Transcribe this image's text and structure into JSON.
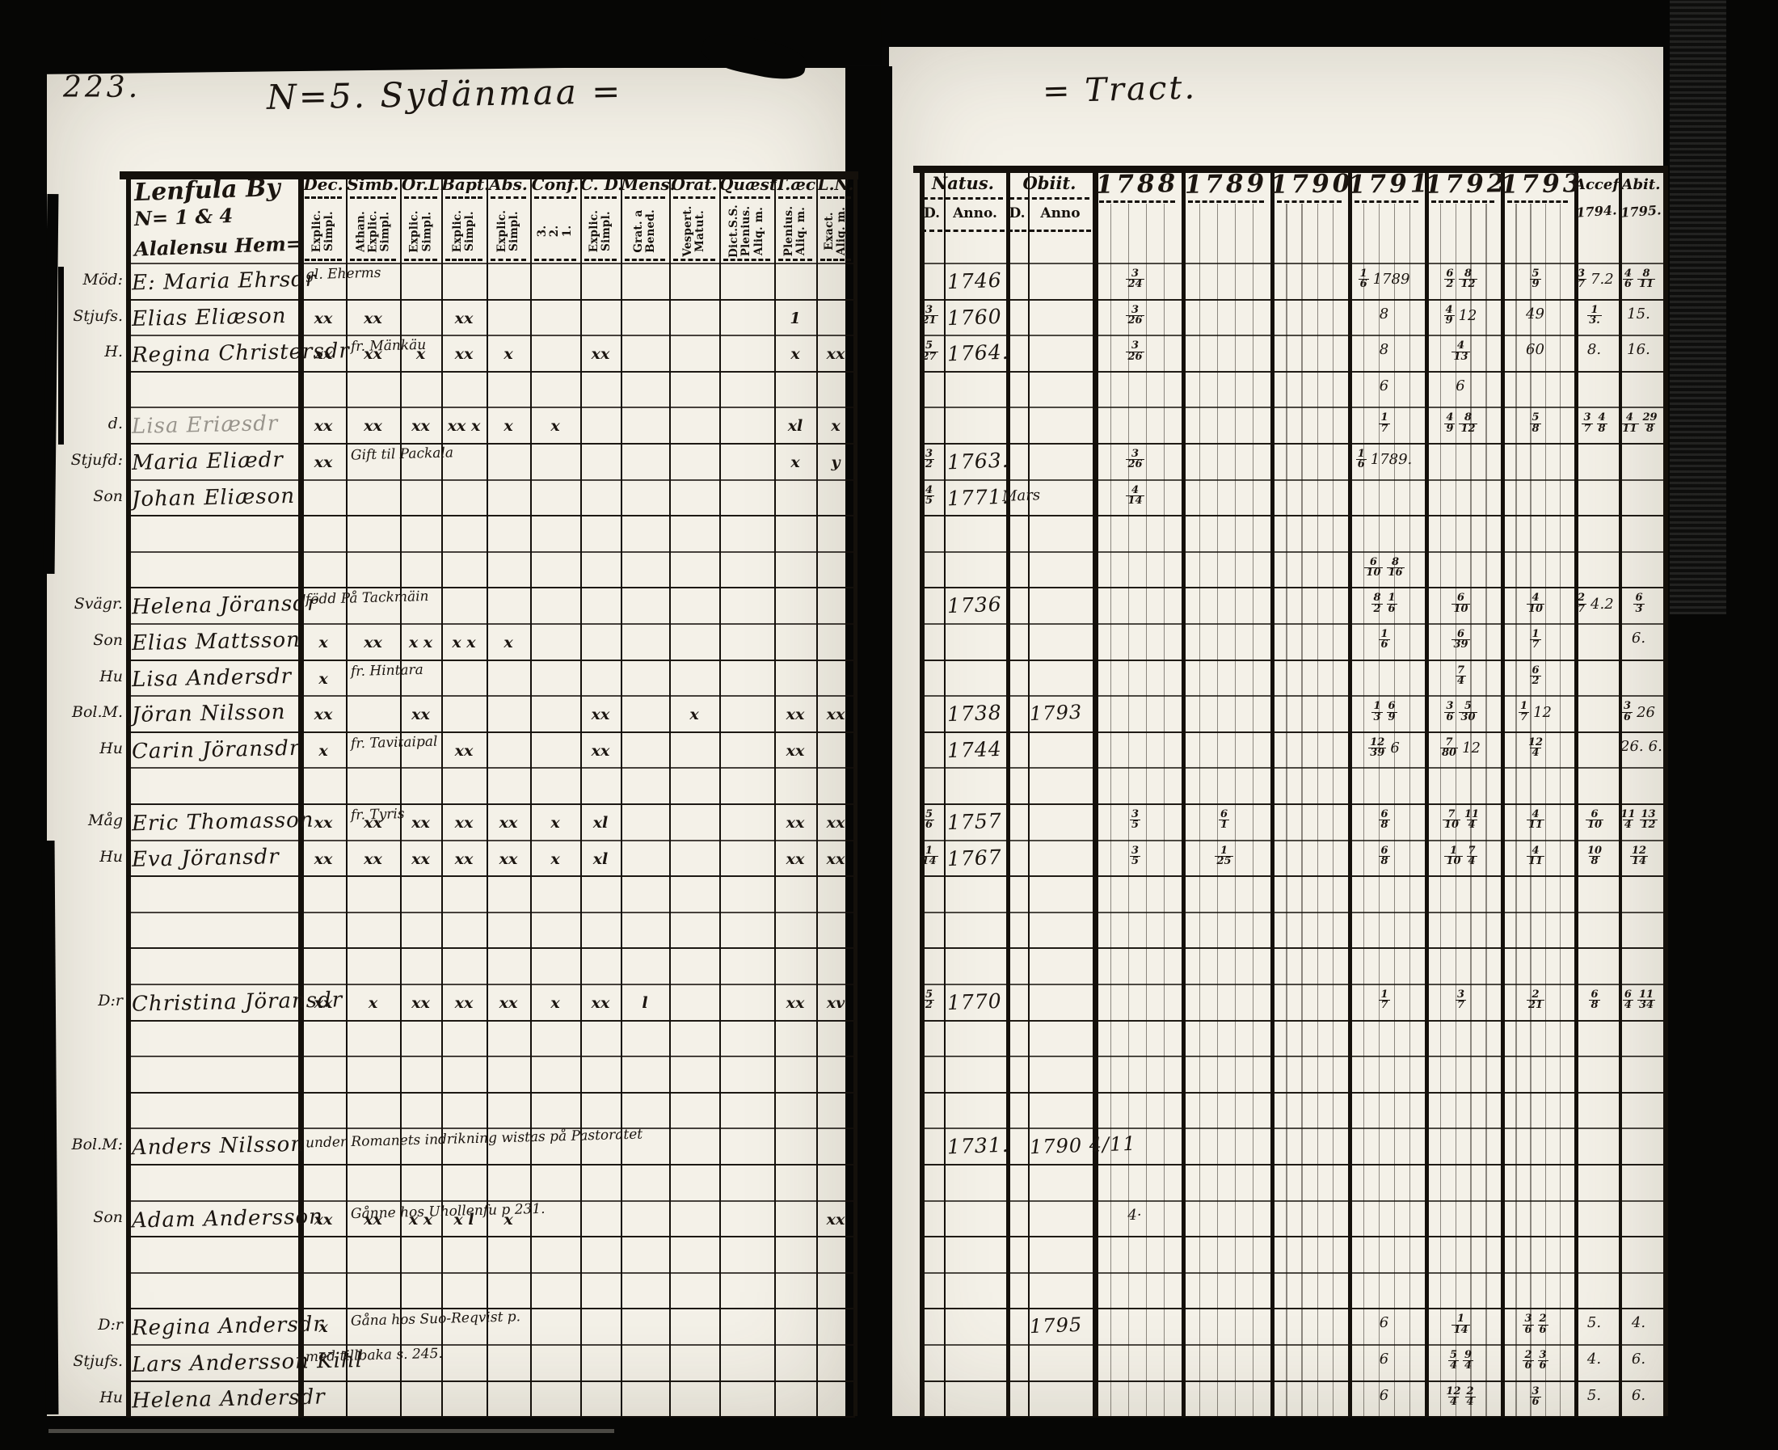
{
  "scan": {
    "page_number": "223.",
    "left_heading": "N=5. Sydänmaa =",
    "right_heading": "= Tract.",
    "paper_color": "#f4f1e8",
    "ink_color": "#1b1510"
  },
  "left_table": {
    "village_lines": [
      "Lenfula By",
      "N= 1 & 4",
      "Alalensu Hem="
    ],
    "columns": [
      {
        "label": "Dec.",
        "sub": [
          "Explic.",
          "Simpl."
        ]
      },
      {
        "label": "Simb.",
        "sub": [
          "Athan.",
          "Explic.",
          "Simpl."
        ]
      },
      {
        "label": "Or.L",
        "sub": [
          "Explic.",
          "Simpl."
        ]
      },
      {
        "label": "Bapt.",
        "sub": [
          "Explic.",
          "Simpl."
        ]
      },
      {
        "label": "Abs.",
        "sub": [
          "Explic.",
          "Simpl."
        ]
      },
      {
        "label": "Conf.",
        "sub": [
          "3.",
          "2.",
          "1."
        ]
      },
      {
        "label": "C. D.",
        "sub": [
          "Explic.",
          "Simpl."
        ]
      },
      {
        "label": "Mens.",
        "sub": [
          "Grat. a",
          "Bened."
        ]
      },
      {
        "label": "Orat.",
        "sub": [
          "Vespert.",
          "Matut."
        ]
      },
      {
        "label": "Quæst.",
        "sub": [
          "Dict.S.S.",
          "Plenius.",
          "Aliq. m."
        ]
      },
      {
        "label": "T.æc",
        "sub": [
          "Plenius.",
          "Aliq. m."
        ]
      },
      {
        "label": "L.N.",
        "sub": [
          "Exact.",
          "Aliq. m."
        ]
      }
    ],
    "rows": [
      {
        "m": "Möd:",
        "n": "E: Maria Ehrsdr",
        "note": "gl. Eherms",
        "nc": 0
      },
      {
        "m": "Stjufs.",
        "n": "Elias Eliæson",
        "k": {
          "0": "xx",
          "1": "xx",
          "3": "xx",
          "10": "1"
        }
      },
      {
        "m": "H.",
        "n": "Regina Christersdr",
        "note": "fr. Mänkäu",
        "nc": 1,
        "k": {
          "0": "xx",
          "1": "xx",
          "2": "x",
          "3": "xx",
          "4": "x",
          "6": "xx",
          "10": "x",
          "11": "xx"
        }
      },
      {},
      {
        "m": "d.",
        "n": "Lisa Eriæsdr",
        "faded": true,
        "k": {
          "0": "xx",
          "1": "xx",
          "2": "xx",
          "3": "xx x",
          "4": "x",
          "5": "x",
          "10": "xl",
          "11": "x"
        }
      },
      {
        "m": "Stjufd:",
        "n": "Maria Eliædr",
        "note": "Gift til Packala",
        "nc": 1,
        "k": {
          "0": "xx",
          "10": "x",
          "11": "y"
        }
      },
      {
        "m": "Son",
        "n": "Johan Eliæson"
      },
      {},
      {},
      {
        "m": "Svägr.",
        "n": "Helena Jöransdr",
        "note": "född På Tackmäin",
        "nc": 0
      },
      {
        "m": "Son",
        "n": "Elias Mattsson",
        "k": {
          "0": "x",
          "1": "xx",
          "2": "x x",
          "3": "x x",
          "4": "x"
        }
      },
      {
        "m": "Hu",
        "n": "Lisa Andersdr",
        "note": "fr. Hintara",
        "nc": 1,
        "k": {
          "0": "x"
        }
      },
      {
        "m": "Bol.M.",
        "n": "Jöran Nilsson",
        "k": {
          "0": "xx",
          "2": "xx",
          "6": "xx",
          "8": "x",
          "10": "xx",
          "11": "xx"
        }
      },
      {
        "m": "Hu",
        "n": "Carin Jöransdr",
        "note": "fr. Tavitaipal",
        "nc": 1,
        "k": {
          "0": "x",
          "3": "xx",
          "6": "xx",
          "10": "xx"
        }
      },
      {},
      {
        "m": "Måg",
        "n": "Eric Thomasson",
        "note": "fr. Tyris",
        "nc": 1,
        "k": {
          "0": "xx",
          "1": "xx",
          "2": "xx",
          "3": "xx",
          "4": "xx",
          "5": "x",
          "6": "xl",
          "10": "xx",
          "11": "xx"
        }
      },
      {
        "m": "Hu",
        "n": "Eva Jöransdr",
        "k": {
          "0": "xx",
          "1": "xx",
          "2": "xx",
          "3": "xx",
          "4": "xx",
          "5": "x",
          "6": "xl",
          "10": "xx",
          "11": "xx"
        }
      },
      {},
      {},
      {},
      {
        "m": "D:r",
        "n": "Christina Jöransdr",
        "k": {
          "0": "xx",
          "1": "x",
          "2": "xx",
          "3": "xx",
          "4": "xx",
          "5": "x",
          "6": "xx",
          "7": "l",
          "10": "xx",
          "11": "xv"
        }
      },
      {},
      {},
      {},
      {
        "m": "Bol.M:",
        "n": "Anders Nilsson",
        "note": "under Romanets indrikning wistas på Pastoratet",
        "nc": 0
      },
      {},
      {
        "m": "Son",
        "n": "Adam Andersson",
        "note": "Gånne hos Uhollenfu p 231.",
        "nc": 1,
        "k": {
          "0": "xx",
          "1": "xx",
          "2": "x x",
          "3": "x l",
          "4": "x",
          "11": "xx"
        }
      },
      {},
      {},
      {
        "m": "D:r",
        "n": "Regina Andersdr",
        "note": "Gåna hos Suo-Reqvist p.",
        "nc": 1,
        "k": {
          "0": "x"
        }
      },
      {
        "m": "Stjufs.",
        "n": "Lars Andersson Kihl",
        "note": "med tillbaka s. 245.",
        "nc": 0
      },
      {
        "m": "Hu",
        "n": "Helena Andersdr"
      }
    ]
  },
  "right_table": {
    "natus": {
      "label": "Natus.",
      "d": "D.",
      "anno": "Anno."
    },
    "obiit": {
      "label": "Obiit.",
      "d": "D.",
      "anno": "Anno"
    },
    "years": [
      "1788",
      "1789",
      "1790",
      "1791",
      "1792",
      "1793"
    ],
    "accessit": {
      "label": "Accef.",
      "sub": "1794."
    },
    "abiit": {
      "label": "Abit.",
      "sub": "1795."
    },
    "rows": [
      {
        "na": "1746",
        "y": {
          "0": "3/24",
          "3": "1/6 1789",
          "4": "6/2 8/12",
          "5": "5/9",
          "6": "3/7 7.2",
          "7": "4/6 8/11"
        }
      },
      {
        "nd": "3/21",
        "na": "1760",
        "y": {
          "0": "3/26",
          "3": "8",
          "4": "4/9 12",
          "5": "49",
          "6": "1/3.",
          "7": "15."
        }
      },
      {
        "nd": "5/27",
        "na": "1764.",
        "y": {
          "0": "3/26",
          "3": "8",
          "4": "4/13",
          "5": "60",
          "6": "8.",
          "7": "16."
        }
      },
      {
        "y": {
          "3": "6",
          "4": "6"
        }
      },
      {
        "y": {
          "3": "1/7",
          "4": "4/9 8/12",
          "5": "5/8",
          "6": "3/7 4/8",
          "7": "4/11 29/8"
        }
      },
      {
        "nd": "3/2",
        "na": "1763.",
        "y": {
          "0": "3/26",
          "3": "1/6 1789."
        }
      },
      {
        "nd": "4/5",
        "na": "1771.",
        "od": "Mars",
        "y": {
          "0": "4/14"
        }
      },
      {},
      {
        "y": {
          "3": "6/10 8/16"
        }
      },
      {
        "na": "1736",
        "y": {
          "3": "8/2 1/6",
          "4": "6/10",
          "5": "4/10",
          "6": "2/7 4.2",
          "7": "6/3"
        }
      },
      {
        "y": {
          "3": "1/6",
          "4": "6/39",
          "5": "1/7",
          "7": "6."
        }
      },
      {
        "y": {
          "4": "7/4",
          "5": "6/2"
        }
      },
      {
        "na": "1738",
        "oa": "1793",
        "y": {
          "3": "1/3 6/9",
          "4": "3/6 5/30",
          "5": "1/7 12",
          "7": "3/6 26"
        }
      },
      {
        "na": "1744",
        "y": {
          "3": "12/39 6",
          "4": "7/80 12",
          "5": "12/4",
          "7": "26. 6."
        }
      },
      {},
      {
        "nd": "5/6",
        "na": "1757",
        "y": {
          "0": "3/5",
          "1": "6/1",
          "3": "6/8",
          "4": "7/10 11/4",
          "5": "4/11",
          "6": "6/10",
          "7": "11/4 13/12"
        }
      },
      {
        "nd": "1/14",
        "na": "1767",
        "y": {
          "0": "3/5",
          "1": "1/25",
          "3": "6/8",
          "4": "1/10 7/4",
          "5": "4/11",
          "6": "10/8",
          "7": "12/14"
        }
      },
      {},
      {},
      {},
      {
        "nd": "5/2",
        "na": "1770",
        "y": {
          "3": "1/7",
          "4": "3/7",
          "5": "2/21",
          "6": "6/8",
          "7": "6/4 11/34"
        }
      },
      {},
      {},
      {},
      {
        "na": "1731.",
        "oa": "1790 4/11"
      },
      {},
      {
        "y": {
          "0": "4·"
        }
      },
      {},
      {},
      {
        "oa": "1795",
        "y": {
          "3": "6",
          "4": "1/14",
          "5": "3/6 2/6",
          "6": "5.",
          "7": "4."
        }
      },
      {
        "y": {
          "3": "6",
          "4": "5/4 9/4",
          "5": "2/6 3/6",
          "6": "4.",
          "7": "6."
        }
      },
      {
        "y": {
          "3": "6",
          "4": "12/4 2/4",
          "5": "3/6",
          "6": "5.",
          "7": "6."
        }
      }
    ]
  }
}
